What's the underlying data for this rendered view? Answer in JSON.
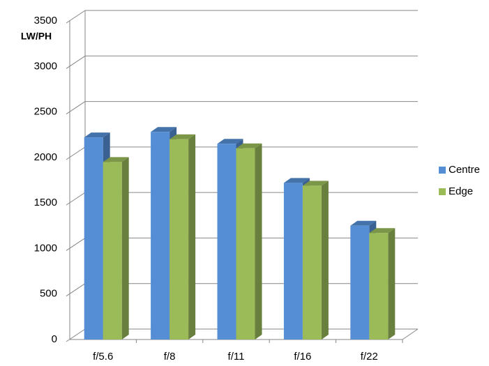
{
  "chart_data": {
    "type": "bar3d",
    "y_label": "LW/PH",
    "categories": [
      "f/5.6",
      "f/8",
      "f/11",
      "f/16",
      "f/22"
    ],
    "series": [
      {
        "name": "Centre",
        "color": "#558ed5",
        "values": [
          2220,
          2280,
          2150,
          1720,
          1250
        ]
      },
      {
        "name": "Edge",
        "color": "#9bbb59",
        "values": [
          1950,
          2200,
          2100,
          1690,
          1170
        ]
      }
    ],
    "ylim": [
      0,
      3500
    ],
    "yticks": [
      0,
      500,
      1000,
      1500,
      2000,
      2500,
      3000,
      3500
    ],
    "grid": true,
    "legend": "right"
  }
}
